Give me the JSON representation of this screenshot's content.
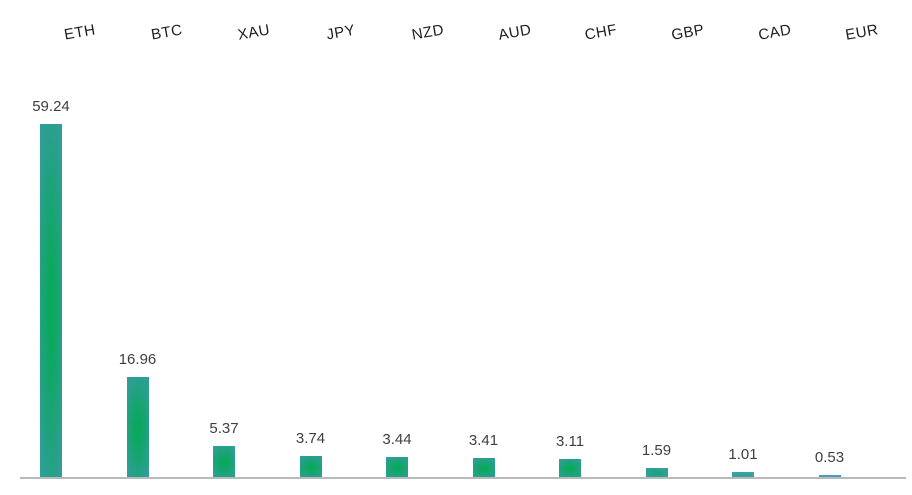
{
  "chart_data": {
    "type": "bar",
    "title": "",
    "xlabel": "",
    "ylabel": "",
    "grid": false,
    "legend": false,
    "ylim": [
      0,
      62
    ],
    "categories": [
      "ETH",
      "BTC",
      "XAU",
      "JPY",
      "NZD",
      "AUD",
      "CHF",
      "GBP",
      "CAD",
      "EUR"
    ],
    "values": [
      59.24,
      16.96,
      5.37,
      3.74,
      3.44,
      3.41,
      3.11,
      1.59,
      1.01,
      0.53
    ],
    "value_labels": [
      "59.24",
      "16.96",
      "5.37",
      "3.74",
      "3.44",
      "3.41",
      "3.11",
      "1.59",
      "1.01",
      "0.53"
    ],
    "layout_hints": {
      "category_axis_position": "top",
      "category_label_rotation_deg": -10,
      "value_labels_position": "above-bars",
      "baseline_axis": "bottom"
    },
    "colors": {
      "category_label": "#1c1c1c",
      "value_label": "#3f3f3f",
      "axis_line": "#b9b9b9",
      "bars": [
        {
          "center": "#0aa85c",
          "edge": "#2f9e96"
        },
        {
          "center": "#0aa85c",
          "edge": "#2f9e96"
        },
        {
          "center": "#0aa85c",
          "edge": "#2f9e96"
        },
        {
          "center": "#0aa85c",
          "edge": "#2f9e96"
        },
        {
          "center": "#0aa85c",
          "edge": "#2f9e96"
        },
        {
          "center": "#0aa85c",
          "edge": "#2f9e96"
        },
        {
          "center": "#0aa85c",
          "edge": "#2f9e96"
        },
        {
          "center": "#1ba37f",
          "edge": "#35a09b"
        },
        {
          "center": "#32a196",
          "edge": "#3ba1a8"
        },
        {
          "center": "#4b9fc2",
          "edge": "#449bc0"
        }
      ]
    }
  }
}
